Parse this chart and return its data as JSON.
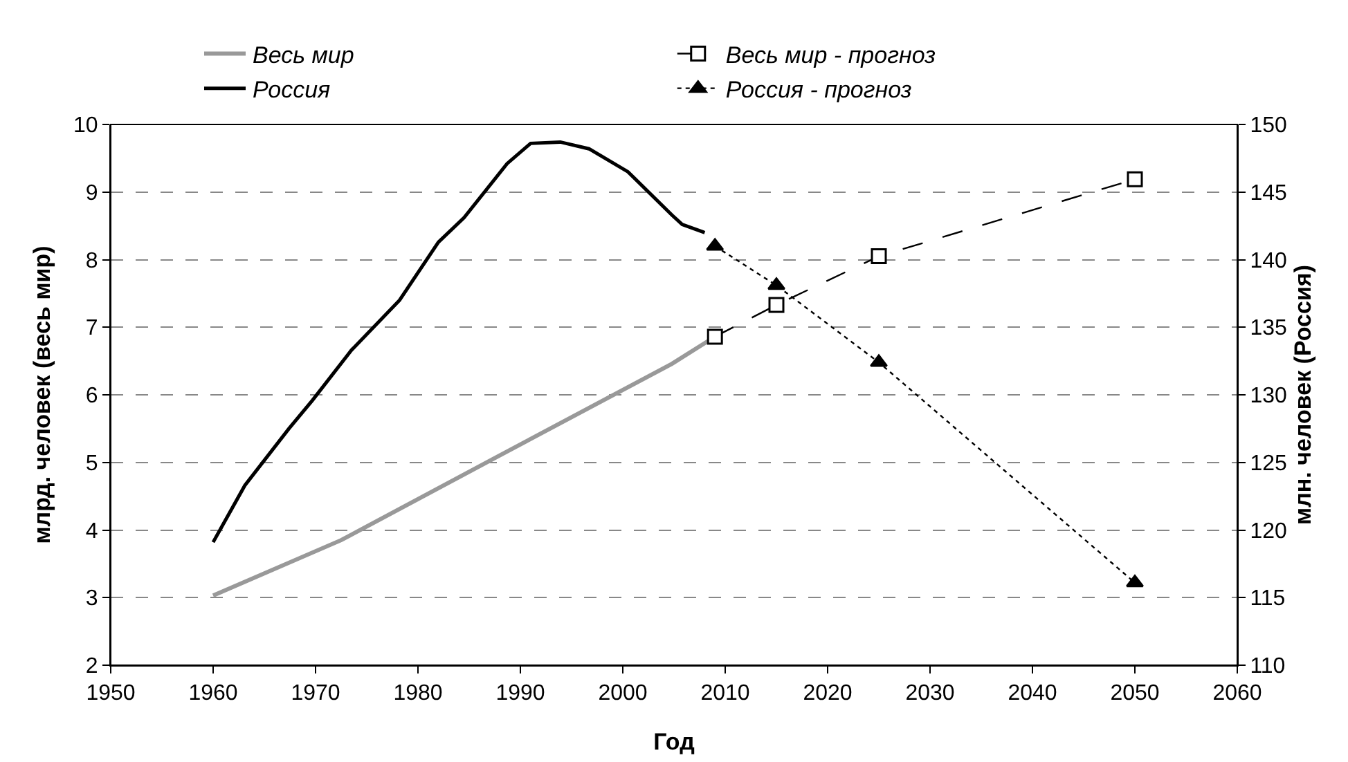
{
  "chart_data": {
    "type": "line",
    "xlabel": "Год",
    "ylabel": "млрд. человек (весь мир)",
    "y2label": "млн. человек (Россия)",
    "xlim": [
      1950,
      2060
    ],
    "xticks": [
      1950,
      1960,
      1970,
      1980,
      1990,
      2000,
      2010,
      2020,
      2030,
      2040,
      2050,
      2060
    ],
    "ylim": [
      2,
      10
    ],
    "yticks": [
      2,
      3,
      4,
      5,
      6,
      7,
      8,
      9,
      10
    ],
    "y2lim": [
      110,
      150
    ],
    "y2ticks": [
      110,
      115,
      120,
      125,
      130,
      135,
      140,
      145,
      150
    ],
    "grid": "y",
    "legend": "top",
    "series": [
      {
        "name": "Весь мир",
        "color": "#999999",
        "marker": "none",
        "line_style": "solid",
        "x": [
          1960,
          1972.5,
          1987.7,
          2004.8,
          2009
        ],
        "values": [
          3.03,
          3.85,
          5.08,
          6.46,
          6.86
        ]
      },
      {
        "name": "Весь мир - прогноз",
        "color": "#000000",
        "marker": "square",
        "line_style": "dashed",
        "x": [
          2009,
          2015,
          2025,
          2050
        ],
        "values": [
          6.86,
          7.33,
          8.05,
          9.19
        ]
      },
      {
        "name": "Россия",
        "color": "#000000",
        "axis": "y2",
        "marker": "none",
        "line_style": "solid",
        "x": [
          1960,
          1963.1,
          1967.4,
          1969.7,
          1973.5,
          1978.2,
          1982,
          1984.5,
          1988.7,
          1991,
          1993.9,
          1996.7,
          2000.5,
          2004.8,
          2005.8,
          2008
        ],
        "values": [
          119.1,
          123.3,
          127.5,
          129.6,
          133.3,
          137.0,
          141.3,
          143.1,
          147.1,
          148.6,
          148.7,
          148.2,
          146.5,
          143.3,
          142.6,
          142.0
        ]
      },
      {
        "name": "Россия - прогноз",
        "color": "#000000",
        "axis": "y2",
        "marker": "triangle",
        "line_style": "dotted",
        "x": [
          2009,
          2015,
          2025,
          2050
        ],
        "values": [
          141.0,
          138.1,
          132.4,
          116.1
        ]
      }
    ]
  }
}
